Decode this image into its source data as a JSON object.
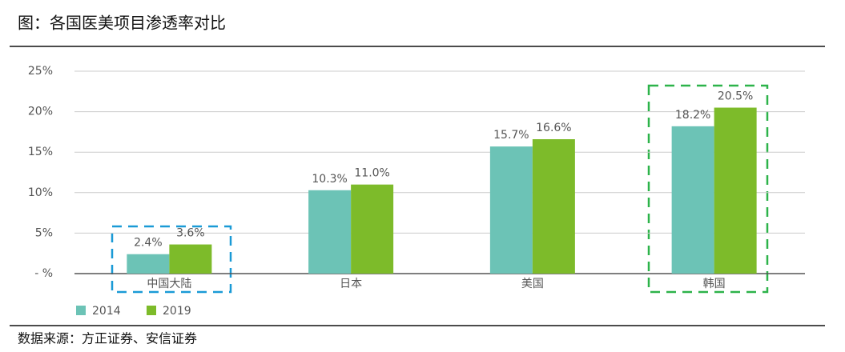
{
  "chart_data": {
    "type": "bar",
    "title": "图：各国医美项目渗透率对比",
    "categories": [
      "中国大陆",
      "日本",
      "美国",
      "韩国"
    ],
    "series": [
      {
        "name": "2014",
        "color": "#6cc3b6",
        "values": [
          2.4,
          10.3,
          15.7,
          18.2
        ],
        "value_labels": [
          "2.4%",
          "10.3%",
          "15.7%",
          "18.2%"
        ]
      },
      {
        "name": "2019",
        "color": "#7dbb2a",
        "values": [
          3.6,
          11.0,
          16.6,
          20.5
        ],
        "value_labels": [
          "3.6%",
          "11.0%",
          "16.6%",
          "20.5%"
        ]
      }
    ],
    "ylim": [
      0,
      25
    ],
    "yticks": [
      {
        "value": 0,
        "label": "- %"
      },
      {
        "value": 5,
        "label": "5%"
      },
      {
        "value": 10,
        "label": "10%"
      },
      {
        "value": 15,
        "label": "15%"
      },
      {
        "value": 20,
        "label": "20%"
      },
      {
        "value": 25,
        "label": "25%"
      }
    ],
    "grid": true,
    "source": "数据来源：方正证券、安信证券"
  }
}
